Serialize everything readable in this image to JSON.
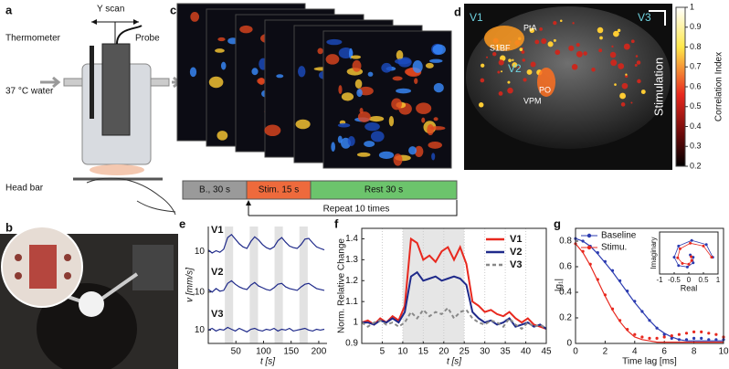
{
  "panel_labels": [
    "a",
    "b",
    "c",
    "d",
    "e",
    "f",
    "g"
  ],
  "a": {
    "y_scan": "Y scan",
    "thermometer": "Thermometer",
    "probe": "Probe",
    "water": "37 °C water",
    "head_bar": "Head bar"
  },
  "c": {
    "timeline": [
      "B., 30 s",
      "Stim. 15 s",
      "Rest 30 s"
    ],
    "repeat": "Repeat 10 times"
  },
  "d": {
    "regions": [
      "V1",
      "V3",
      "V2",
      "PtA",
      "S1BF",
      "PO",
      "VPM"
    ],
    "condition": "Stimulation",
    "colorbar": {
      "label": "Correlation Index",
      "lim": [
        0.2,
        1
      ],
      "ticks": [
        1,
        0.9,
        0.8,
        0.7,
        0.6,
        0.5,
        0.4,
        0.3,
        0.2
      ]
    }
  },
  "chart_data": [
    {
      "type": "line",
      "xlabel": "t [s]",
      "ylabel": "v [mm/s]",
      "color": "#1f2a8a",
      "x": [
        0,
        7,
        14,
        21,
        28,
        35,
        42,
        49,
        56,
        63,
        70,
        77,
        84,
        91,
        98,
        105,
        112,
        119,
        126,
        133,
        140,
        147,
        154,
        161,
        168,
        175,
        182,
        189,
        196,
        203,
        210
      ],
      "xlim": [
        0,
        215
      ],
      "xticks": [
        50,
        100,
        150,
        200
      ],
      "shaded": [
        [
          30,
          45
        ],
        [
          75,
          90
        ],
        [
          120,
          135
        ],
        [
          165,
          180
        ]
      ],
      "series": [
        {
          "name": "V1",
          "ylim": [
            8.5,
            13
          ],
          "yticks": [
            10
          ],
          "values": [
            10.2,
            9.8,
            10.1,
            9.9,
            10.3,
            11.8,
            12.2,
            11.6,
            11.0,
            10.6,
            10.4,
            11.3,
            11.9,
            11.5,
            10.9,
            10.5,
            10.3,
            10.6,
            11.4,
            11.8,
            11.2,
            10.7,
            10.5,
            10.4,
            10.9,
            11.6,
            11.7,
            11.1,
            10.6,
            10.4,
            10.2
          ]
        },
        {
          "name": "V2",
          "ylim": [
            8.5,
            12.5
          ],
          "yticks": [
            10
          ],
          "values": [
            10.3,
            10.0,
            10.4,
            10.1,
            10.2,
            11.0,
            11.3,
            10.9,
            10.6,
            10.4,
            10.3,
            10.8,
            11.1,
            10.7,
            10.5,
            10.3,
            10.2,
            10.5,
            10.9,
            11.0,
            10.6,
            10.4,
            10.3,
            10.2,
            10.6,
            10.9,
            11.0,
            10.7,
            10.4,
            10.3,
            10.2
          ]
        },
        {
          "name": "V3",
          "ylim": [
            8.5,
            12
          ],
          "yticks": [
            10
          ],
          "values": [
            10.0,
            10.2,
            9.9,
            10.1,
            10.0,
            10.3,
            10.1,
            9.9,
            10.2,
            10.0,
            9.8,
            10.1,
            10.2,
            10.0,
            9.9,
            10.1,
            10.0,
            10.2,
            9.9,
            10.1,
            10.0,
            10.2,
            9.9,
            10.0,
            10.1,
            10.2,
            10.0,
            9.9,
            10.1,
            10.0,
            10.1
          ]
        }
      ]
    },
    {
      "type": "line",
      "xlabel": "t [s]",
      "ylabel": "Norm. Relative Change",
      "legend": "upper right",
      "x": [
        0,
        1.5,
        3,
        4.5,
        6,
        7.5,
        9,
        10.5,
        12,
        13.5,
        15,
        16.5,
        18,
        19.5,
        21,
        22.5,
        24,
        25.5,
        27,
        28.5,
        30,
        31.5,
        33,
        34.5,
        36,
        37.5,
        39,
        40.5,
        42,
        43.5,
        45
      ],
      "xlim": [
        0,
        45
      ],
      "xticks": [
        5,
        10,
        15,
        20,
        25,
        30,
        35,
        40,
        45
      ],
      "ylim": [
        0.9,
        1.45
      ],
      "yticks": [
        0.9,
        1,
        1.1,
        1.2,
        1.3,
        1.4
      ],
      "shaded": [
        [
          10,
          25
        ]
      ],
      "series": [
        {
          "name": "V1",
          "color": "#e8281e",
          "values": [
            1.0,
            1.01,
            0.99,
            1.02,
            1.0,
            1.03,
            1.01,
            1.08,
            1.4,
            1.38,
            1.3,
            1.32,
            1.29,
            1.34,
            1.36,
            1.3,
            1.36,
            1.28,
            1.1,
            1.08,
            1.05,
            1.06,
            1.04,
            1.03,
            1.05,
            1.02,
            1.0,
            1.02,
            0.99,
            0.98,
            0.97
          ]
        },
        {
          "name": "V2",
          "color": "#1f2a8a",
          "values": [
            1.0,
            1.0,
            0.99,
            1.01,
            1.0,
            1.02,
            1.0,
            1.05,
            1.22,
            1.24,
            1.2,
            1.21,
            1.22,
            1.2,
            1.21,
            1.22,
            1.21,
            1.18,
            1.05,
            1.02,
            1.0,
            1.01,
            0.99,
            1.0,
            1.02,
            0.98,
            0.99,
            1.0,
            0.98,
            0.99,
            0.97
          ]
        },
        {
          "name": "V3",
          "color": "#888888",
          "dashed": true,
          "values": [
            1.0,
            0.98,
            1.0,
            1.01,
            0.99,
            1.0,
            0.98,
            1.0,
            1.05,
            1.02,
            1.06,
            1.03,
            1.05,
            1.04,
            1.07,
            1.02,
            1.05,
            1.06,
            1.02,
            1.0,
            0.99,
            1.01,
            1.0,
            0.98,
            1.02,
            0.99,
            0.97,
            1.0,
            0.98,
            0.99,
            0.97
          ]
        }
      ]
    },
    {
      "type": "line",
      "xlabel": "Time lag [ms]",
      "ylabel": "|g₁|",
      "legend": "upper left",
      "x": [
        0,
        0.5,
        1,
        1.5,
        2,
        2.5,
        3,
        3.5,
        4,
        4.5,
        5,
        5.5,
        6,
        6.5,
        7,
        7.5,
        8,
        8.5,
        9,
        9.5,
        10
      ],
      "xlim": [
        0,
        10
      ],
      "xticks": [
        0,
        2,
        4,
        6,
        8,
        10
      ],
      "ylim": [
        0,
        0.9
      ],
      "yticks": [
        0,
        0.2,
        0.4,
        0.6,
        0.8
      ],
      "series": [
        {
          "name": "Baseline",
          "color": "#2b3bb0",
          "values": [
            0.82,
            0.8,
            0.76,
            0.71,
            0.64,
            0.57,
            0.49,
            0.41,
            0.33,
            0.25,
            0.18,
            0.12,
            0.07,
            0.04,
            0.03,
            0.03,
            0.04,
            0.04,
            0.03,
            0.03,
            0.03
          ],
          "fit": [
            0.82,
            0.8,
            0.76,
            0.7,
            0.63,
            0.56,
            0.48,
            0.4,
            0.32,
            0.25,
            0.18,
            0.12,
            0.08,
            0.05,
            0.03,
            0.02,
            0.02,
            0.02,
            0.02,
            0.02,
            0.02
          ]
        },
        {
          "name": "Stimu.",
          "color": "#e8281e",
          "values": [
            0.78,
            0.72,
            0.62,
            0.5,
            0.38,
            0.27,
            0.18,
            0.11,
            0.07,
            0.05,
            0.04,
            0.04,
            0.05,
            0.06,
            0.07,
            0.08,
            0.09,
            0.09,
            0.08,
            0.07,
            0.05
          ],
          "fit": [
            0.78,
            0.71,
            0.61,
            0.49,
            0.37,
            0.26,
            0.17,
            0.1,
            0.05,
            0.03,
            0.02,
            0.01,
            0.01,
            0.01,
            0.01,
            0.01,
            0.01,
            0.01,
            0.01,
            0.01,
            0.01
          ]
        }
      ]
    },
    {
      "type": "scatter",
      "xlabel": "Real",
      "ylabel": "Imaginary",
      "xlim": [
        -1,
        1
      ],
      "xticks": [
        -1,
        -0.5,
        0,
        0.5,
        1
      ],
      "ylim": [
        -0.6,
        0.9
      ],
      "series": [
        {
          "color": "#2b3bb0",
          "x": [
            0.82,
            0.6,
            0.1,
            -0.35,
            -0.5,
            -0.35,
            -0.05,
            0.15,
            0.15,
            0.05
          ],
          "values": [
            0,
            0.45,
            0.6,
            0.4,
            0.0,
            -0.3,
            -0.35,
            -0.2,
            0.0,
            0.08
          ]
        },
        {
          "color": "#e8281e",
          "x": [
            0.78,
            0.5,
            0.05,
            -0.3,
            -0.38,
            -0.22,
            0.0,
            0.1,
            0.08
          ],
          "values": [
            0,
            0.4,
            0.5,
            0.3,
            -0.02,
            -0.22,
            -0.25,
            -0.12,
            0.02
          ]
        }
      ]
    }
  ]
}
